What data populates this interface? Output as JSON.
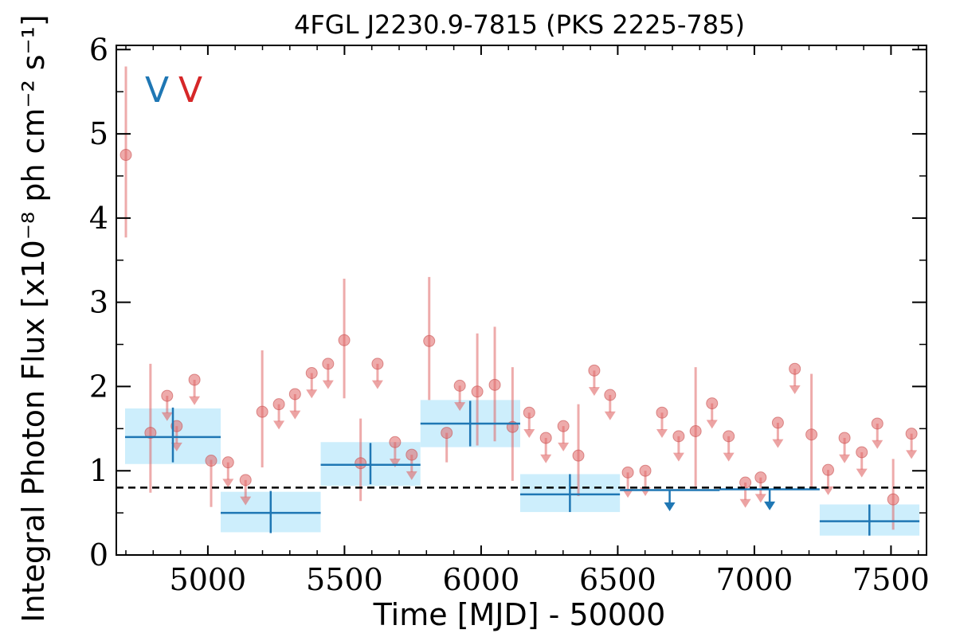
{
  "chart_data": {
    "type": "scatter",
    "title": "4FGL J2230.9-7815 (PKS 2225-785)",
    "xlabel": "Time [MJD] - 50000",
    "ylabel": "Integral Photon Flux [x10⁻⁸ ph cm⁻² s⁻¹]",
    "xlim": [
      4665,
      7630
    ],
    "ylim": [
      0,
      6.05
    ],
    "xticks": [
      5000,
      5500,
      6000,
      6500,
      7000,
      7500
    ],
    "yticks": [
      0,
      1,
      2,
      3,
      4,
      5,
      6
    ],
    "grid": false,
    "legend": {
      "placement": "top-left",
      "entries": [
        {
          "label": "V",
          "color": "#1f77b4"
        },
        {
          "label": "V",
          "color": "#d62728"
        }
      ]
    },
    "reference_line": {
      "y": 0.8,
      "style": "dashed",
      "color": "#000000"
    },
    "series": [
      {
        "type": "binned",
        "color": "#1f77b4",
        "band_color": "#cdeefc",
        "bins": [
          {
            "x0": 4697,
            "x1": 5047,
            "x": 4872,
            "y": 1.4,
            "yerr_low": 0.3,
            "yerr_high": 0.35,
            "band": [
              1.08,
              1.74
            ]
          },
          {
            "x0": 5047,
            "x1": 5413,
            "x": 5230,
            "y": 0.5,
            "yerr_low": 0.24,
            "yerr_high": 0.26,
            "band": [
              0.27,
              0.75
            ]
          },
          {
            "x0": 5413,
            "x1": 5778,
            "x": 5595,
            "y": 1.07,
            "yerr_low": 0.23,
            "yerr_high": 0.26,
            "band": [
              0.82,
              1.34
            ]
          },
          {
            "x0": 5778,
            "x1": 6143,
            "x": 5960,
            "y": 1.56,
            "yerr_low": 0.27,
            "yerr_high": 0.27,
            "band": [
              1.28,
              1.84
            ]
          },
          {
            "x0": 6143,
            "x1": 6508,
            "x": 6325,
            "y": 0.72,
            "yerr_low": 0.21,
            "yerr_high": 0.24,
            "band": [
              0.51,
              0.96
            ]
          },
          {
            "x0": 7239,
            "x1": 7604,
            "x": 7421,
            "y": 0.4,
            "yerr_low": 0.17,
            "yerr_high": 0.2,
            "band": [
              0.23,
              0.6
            ]
          }
        ],
        "upper_limits": [
          {
            "x0": 6508,
            "x1": 6873,
            "x": 6690,
            "y": 0.77
          },
          {
            "x0": 6873,
            "x1": 7239,
            "x": 7056,
            "y": 0.78
          }
        ]
      },
      {
        "type": "monthly",
        "color": "#e06666",
        "points": [
          {
            "x": 4700,
            "y": 4.75,
            "ylo": 3.77,
            "yhi": 5.8
          },
          {
            "x": 4790,
            "y": 1.45,
            "ylo": 0.74,
            "yhi": 2.27
          },
          {
            "x": 5012,
            "y": 1.12,
            "ylo": 0.57,
            "yhi": 1.13
          },
          {
            "x": 5199,
            "y": 1.7,
            "ylo": 1.04,
            "yhi": 2.43
          },
          {
            "x": 5559,
            "y": 1.09,
            "ylo": 0.64,
            "yhi": 1.62
          },
          {
            "x": 5499,
            "y": 2.55,
            "ylo": 1.86,
            "yhi": 3.28
          },
          {
            "x": 5810,
            "y": 2.54,
            "ylo": 1.84,
            "yhi": 3.3
          },
          {
            "x": 5874,
            "y": 1.45,
            "ylo": 1.1,
            "yhi": 1.45
          },
          {
            "x": 5986,
            "y": 1.94,
            "ylo": 1.3,
            "yhi": 2.63
          },
          {
            "x": 6050,
            "y": 2.02,
            "ylo": 1.35,
            "yhi": 2.71
          },
          {
            "x": 6115,
            "y": 1.52,
            "ylo": 0.88,
            "yhi": 2.23
          },
          {
            "x": 6356,
            "y": 1.18,
            "ylo": 0.7,
            "yhi": 1.79
          },
          {
            "x": 6785,
            "y": 1.47,
            "ylo": 0.78,
            "yhi": 2.23
          },
          {
            "x": 7209,
            "y": 1.43,
            "ylo": 0.78,
            "yhi": 2.15
          },
          {
            "x": 7508,
            "y": 0.66,
            "ylo": 0.3,
            "yhi": 1.14
          }
        ],
        "upper_limits": [
          {
            "x": 4851,
            "y": 1.89
          },
          {
            "x": 4886,
            "y": 1.53
          },
          {
            "x": 4951,
            "y": 2.08
          },
          {
            "x": 5074,
            "y": 1.1
          },
          {
            "x": 5138,
            "y": 0.89
          },
          {
            "x": 5260,
            "y": 1.79
          },
          {
            "x": 5319,
            "y": 1.91
          },
          {
            "x": 5380,
            "y": 2.16
          },
          {
            "x": 5440,
            "y": 2.27
          },
          {
            "x": 5621,
            "y": 2.27
          },
          {
            "x": 5685,
            "y": 1.34
          },
          {
            "x": 5746,
            "y": 1.19
          },
          {
            "x": 5922,
            "y": 2.01
          },
          {
            "x": 6176,
            "y": 1.69
          },
          {
            "x": 6237,
            "y": 1.39
          },
          {
            "x": 6301,
            "y": 1.53
          },
          {
            "x": 6414,
            "y": 2.19
          },
          {
            "x": 6472,
            "y": 1.9
          },
          {
            "x": 6537,
            "y": 0.98
          },
          {
            "x": 6601,
            "y": 1.0
          },
          {
            "x": 6662,
            "y": 1.69
          },
          {
            "x": 6723,
            "y": 1.41
          },
          {
            "x": 6845,
            "y": 1.8
          },
          {
            "x": 6906,
            "y": 1.41
          },
          {
            "x": 6967,
            "y": 0.86
          },
          {
            "x": 7023,
            "y": 0.92
          },
          {
            "x": 7086,
            "y": 1.57
          },
          {
            "x": 7148,
            "y": 2.21
          },
          {
            "x": 7270,
            "y": 1.01
          },
          {
            "x": 7330,
            "y": 1.39
          },
          {
            "x": 7393,
            "y": 1.22
          },
          {
            "x": 7450,
            "y": 1.56
          },
          {
            "x": 7575,
            "y": 1.44
          }
        ]
      }
    ]
  }
}
